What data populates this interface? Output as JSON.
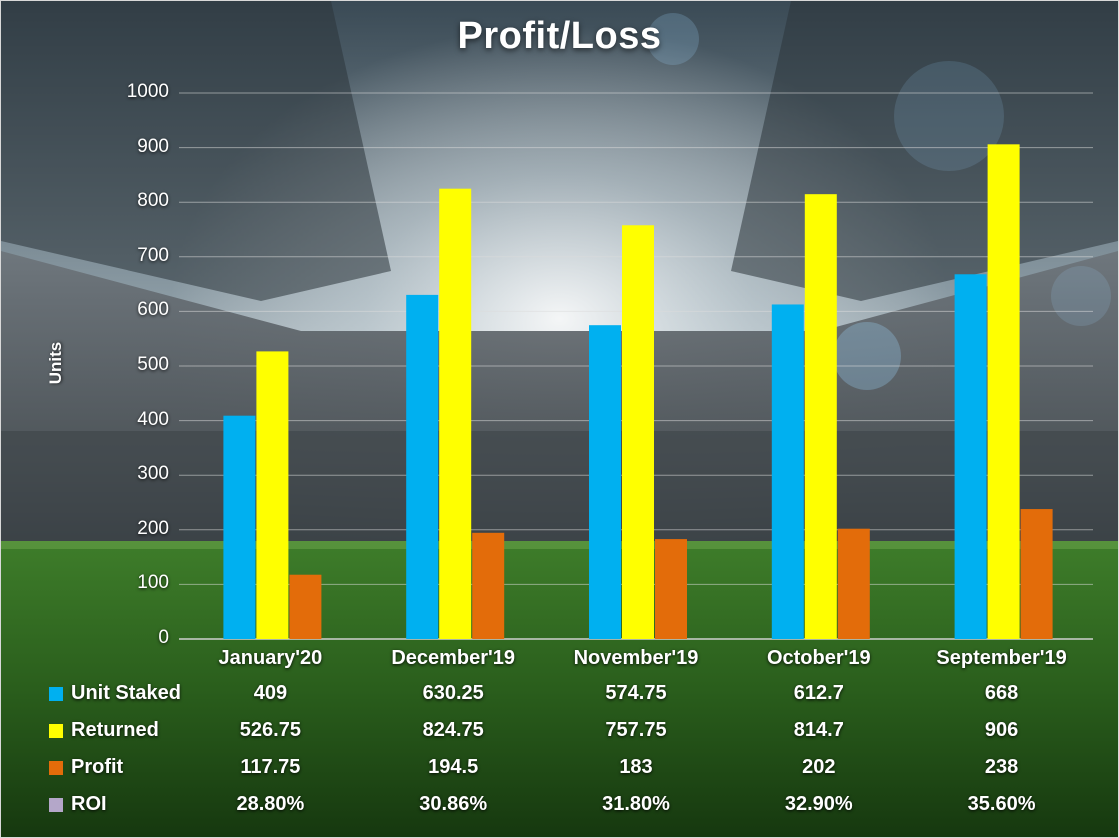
{
  "chart_data": {
    "type": "bar",
    "title": "Profit/Loss",
    "ylabel": "Units",
    "xlabel": "",
    "ylim": [
      0,
      1000
    ],
    "yticks": [
      "0",
      "100",
      "200",
      "300",
      "400",
      "500",
      "600",
      "700",
      "800",
      "900",
      "1000"
    ],
    "grid": true,
    "categories": [
      "January'20",
      "December'19",
      "November'19",
      "October'19",
      "September'19"
    ],
    "series": [
      {
        "name": "Unit Staked",
        "color": "#00b0f0",
        "values": [
          409,
          630.25,
          574.75,
          612.7,
          668
        ]
      },
      {
        "name": "Returned",
        "color": "#ffff00",
        "values": [
          526.75,
          824.75,
          757.75,
          814.7,
          906
        ]
      },
      {
        "name": "Profit",
        "color": "#e36c0a",
        "values": [
          117.75,
          194.5,
          183,
          202,
          238
        ]
      }
    ],
    "table": {
      "rows": [
        {
          "label": "Unit Staked",
          "color": "#00b0f0",
          "cells": [
            "409",
            "630.25",
            "574.75",
            "612.7",
            "668"
          ]
        },
        {
          "label": "Returned",
          "color": "#ffff00",
          "cells": [
            "526.75",
            "824.75",
            "757.75",
            "814.7",
            "906"
          ]
        },
        {
          "label": "Profit",
          "color": "#e36c0a",
          "cells": [
            "117.75",
            "194.5",
            "183",
            "202",
            "238"
          ]
        },
        {
          "label": "ROI",
          "color": "#b4a7c9",
          "cells": [
            "28.80%",
            "30.86%",
            "31.80%",
            "32.90%",
            "35.60%"
          ]
        }
      ]
    }
  }
}
